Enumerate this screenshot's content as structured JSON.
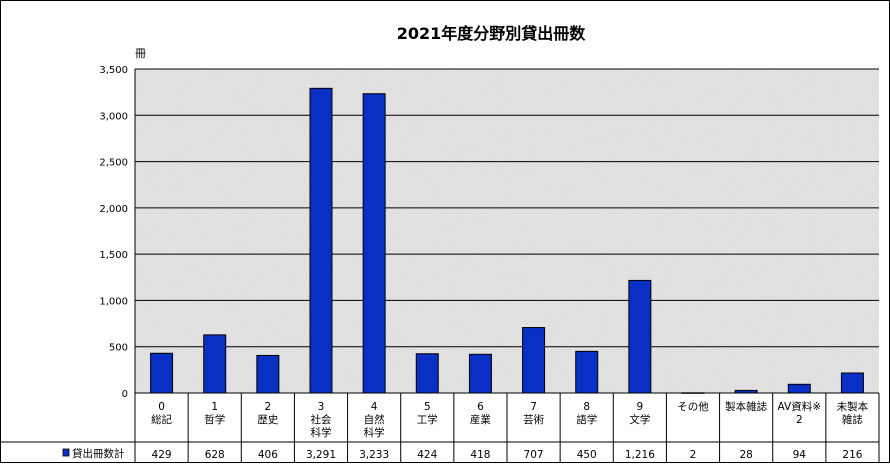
{
  "chart_data": {
    "type": "bar",
    "title": "2021年度分野別貸出冊数",
    "ylabel": "冊",
    "ylim": [
      0,
      3500
    ],
    "yticks": [
      "0",
      "500",
      "1,000",
      "1,500",
      "2,000",
      "2,500",
      "3,000",
      "3,500"
    ],
    "categories": [
      [
        "0",
        "総記"
      ],
      [
        "1",
        "哲学"
      ],
      [
        "2",
        "歴史"
      ],
      [
        "3",
        "社会",
        "科学"
      ],
      [
        "4",
        "自然",
        "科学"
      ],
      [
        "5",
        "工学"
      ],
      [
        "6",
        "産業"
      ],
      [
        "7",
        "芸術"
      ],
      [
        "8",
        "語学"
      ],
      [
        "9",
        "文学"
      ],
      [
        "その他"
      ],
      [
        "製本雑誌"
      ],
      [
        "AV資料※",
        "2"
      ],
      [
        "未製本",
        "雑誌"
      ]
    ],
    "series": [
      {
        "name": "貸出冊数計",
        "values": [
          429,
          628,
          406,
          3291,
          3233,
          424,
          418,
          707,
          450,
          1216,
          2,
          28,
          94,
          216
        ],
        "labels": [
          "429",
          "628",
          "406",
          "3,291",
          "3,233",
          "424",
          "418",
          "707",
          "450",
          "1,216",
          "2",
          "28",
          "94",
          "216"
        ]
      }
    ],
    "grid": true,
    "legend": "data-table",
    "colors": {
      "bar": "#0a2fc4",
      "bar_stroke": "#000000",
      "plot_bg": "#d7d7d7"
    }
  }
}
